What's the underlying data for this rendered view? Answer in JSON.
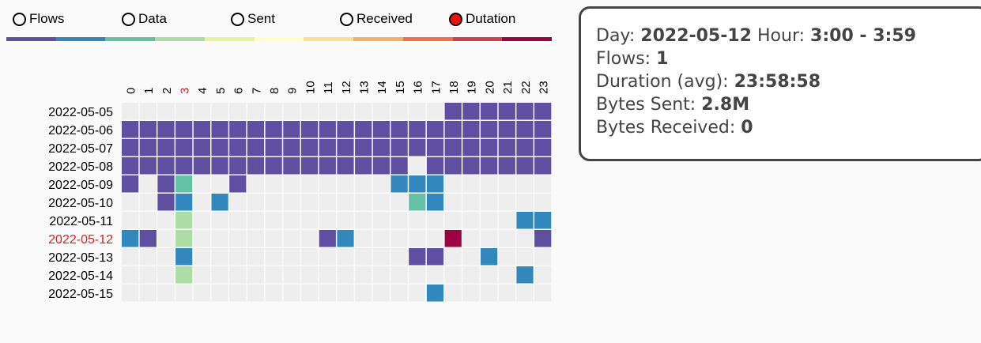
{
  "colors": {
    "scale": [
      "#5e4fa2",
      "#3288bd",
      "#66c2a5",
      "#abdda4",
      "#e6f598",
      "#ffffbf",
      "#fee08b",
      "#fdae61",
      "#f46d43",
      "#d53e4f",
      "#9e0142"
    ],
    "empty": "#eeeeee",
    "highlight_label": "#e41a1c",
    "selected_radio": "#ee1111"
  },
  "metrics": [
    {
      "label": "Flows",
      "selected": false
    },
    {
      "label": "Data",
      "selected": false
    },
    {
      "label": "Sent",
      "selected": false
    },
    {
      "label": "Received",
      "selected": false
    },
    {
      "label": "Dutation",
      "selected": true
    }
  ],
  "chart_data": {
    "type": "heatmap",
    "hours": [
      "0",
      "1",
      "2",
      "3",
      "4",
      "5",
      "6",
      "7",
      "8",
      "9",
      "10",
      "11",
      "12",
      "13",
      "14",
      "15",
      "16",
      "17",
      "18",
      "19",
      "20",
      "21",
      "22",
      "23"
    ],
    "days": [
      "2022-05-05",
      "2022-05-06",
      "2022-05-07",
      "2022-05-08",
      "2022-05-09",
      "2022-05-10",
      "2022-05-11",
      "2022-05-12",
      "2022-05-13",
      "2022-05-14",
      "2022-05-15"
    ],
    "highlighted_hour": "3",
    "highlighted_day": "2022-05-12",
    "color_index_matrix": [
      [
        -1,
        -1,
        -1,
        -1,
        -1,
        -1,
        -1,
        -1,
        -1,
        -1,
        -1,
        -1,
        -1,
        -1,
        -1,
        -1,
        -1,
        -1,
        0,
        0,
        0,
        0,
        0,
        0
      ],
      [
        0,
        0,
        0,
        0,
        0,
        0,
        0,
        0,
        0,
        0,
        0,
        0,
        0,
        0,
        0,
        0,
        0,
        0,
        0,
        0,
        0,
        0,
        0,
        0
      ],
      [
        0,
        0,
        0,
        0,
        0,
        0,
        0,
        0,
        0,
        0,
        0,
        0,
        0,
        0,
        0,
        0,
        0,
        0,
        0,
        0,
        0,
        0,
        0,
        0
      ],
      [
        0,
        0,
        0,
        0,
        0,
        0,
        0,
        0,
        0,
        0,
        0,
        0,
        0,
        0,
        0,
        0,
        -1,
        0,
        0,
        0,
        0,
        0,
        0,
        0
      ],
      [
        0,
        -1,
        0,
        2,
        -1,
        -1,
        0,
        -1,
        -1,
        -1,
        -1,
        -1,
        -1,
        -1,
        -1,
        1,
        1,
        1,
        -1,
        -1,
        -1,
        -1,
        -1,
        -1
      ],
      [
        -1,
        -1,
        0,
        1,
        -1,
        1,
        -1,
        -1,
        -1,
        -1,
        -1,
        -1,
        -1,
        -1,
        -1,
        -1,
        2,
        1,
        -1,
        -1,
        -1,
        -1,
        -1,
        -1
      ],
      [
        -1,
        -1,
        -1,
        3,
        -1,
        -1,
        -1,
        -1,
        -1,
        -1,
        -1,
        -1,
        -1,
        -1,
        -1,
        -1,
        -1,
        -1,
        -1,
        -1,
        -1,
        -1,
        1,
        1
      ],
      [
        1,
        0,
        -1,
        3,
        -1,
        -1,
        -1,
        -1,
        -1,
        -1,
        -1,
        0,
        1,
        -1,
        -1,
        -1,
        -1,
        -1,
        10,
        -1,
        -1,
        -1,
        -1,
        0
      ],
      [
        -1,
        -1,
        -1,
        1,
        -1,
        -1,
        -1,
        -1,
        -1,
        -1,
        -1,
        -1,
        -1,
        -1,
        -1,
        -1,
        0,
        0,
        -1,
        -1,
        1,
        -1,
        -1,
        -1
      ],
      [
        -1,
        -1,
        -1,
        3,
        -1,
        -1,
        -1,
        -1,
        -1,
        -1,
        -1,
        -1,
        -1,
        -1,
        -1,
        -1,
        -1,
        -1,
        -1,
        -1,
        -1,
        -1,
        1,
        -1
      ],
      [
        -1,
        -1,
        -1,
        -1,
        -1,
        -1,
        -1,
        -1,
        -1,
        -1,
        -1,
        -1,
        -1,
        -1,
        -1,
        -1,
        -1,
        1,
        -1,
        -1,
        -1,
        -1,
        -1,
        -1
      ]
    ]
  },
  "info": {
    "day_label": "Day:",
    "day_value": "2022-05-12",
    "hour_label": "Hour:",
    "hour_value": "3:00 - 3:59",
    "flows_label": "Flows:",
    "flows_value": "1",
    "duration_label": "Duration (avg):",
    "duration_value": "23:58:58",
    "sent_label": "Bytes Sent:",
    "sent_value": "2.8M",
    "received_label": "Bytes Received:",
    "received_value": "0"
  }
}
